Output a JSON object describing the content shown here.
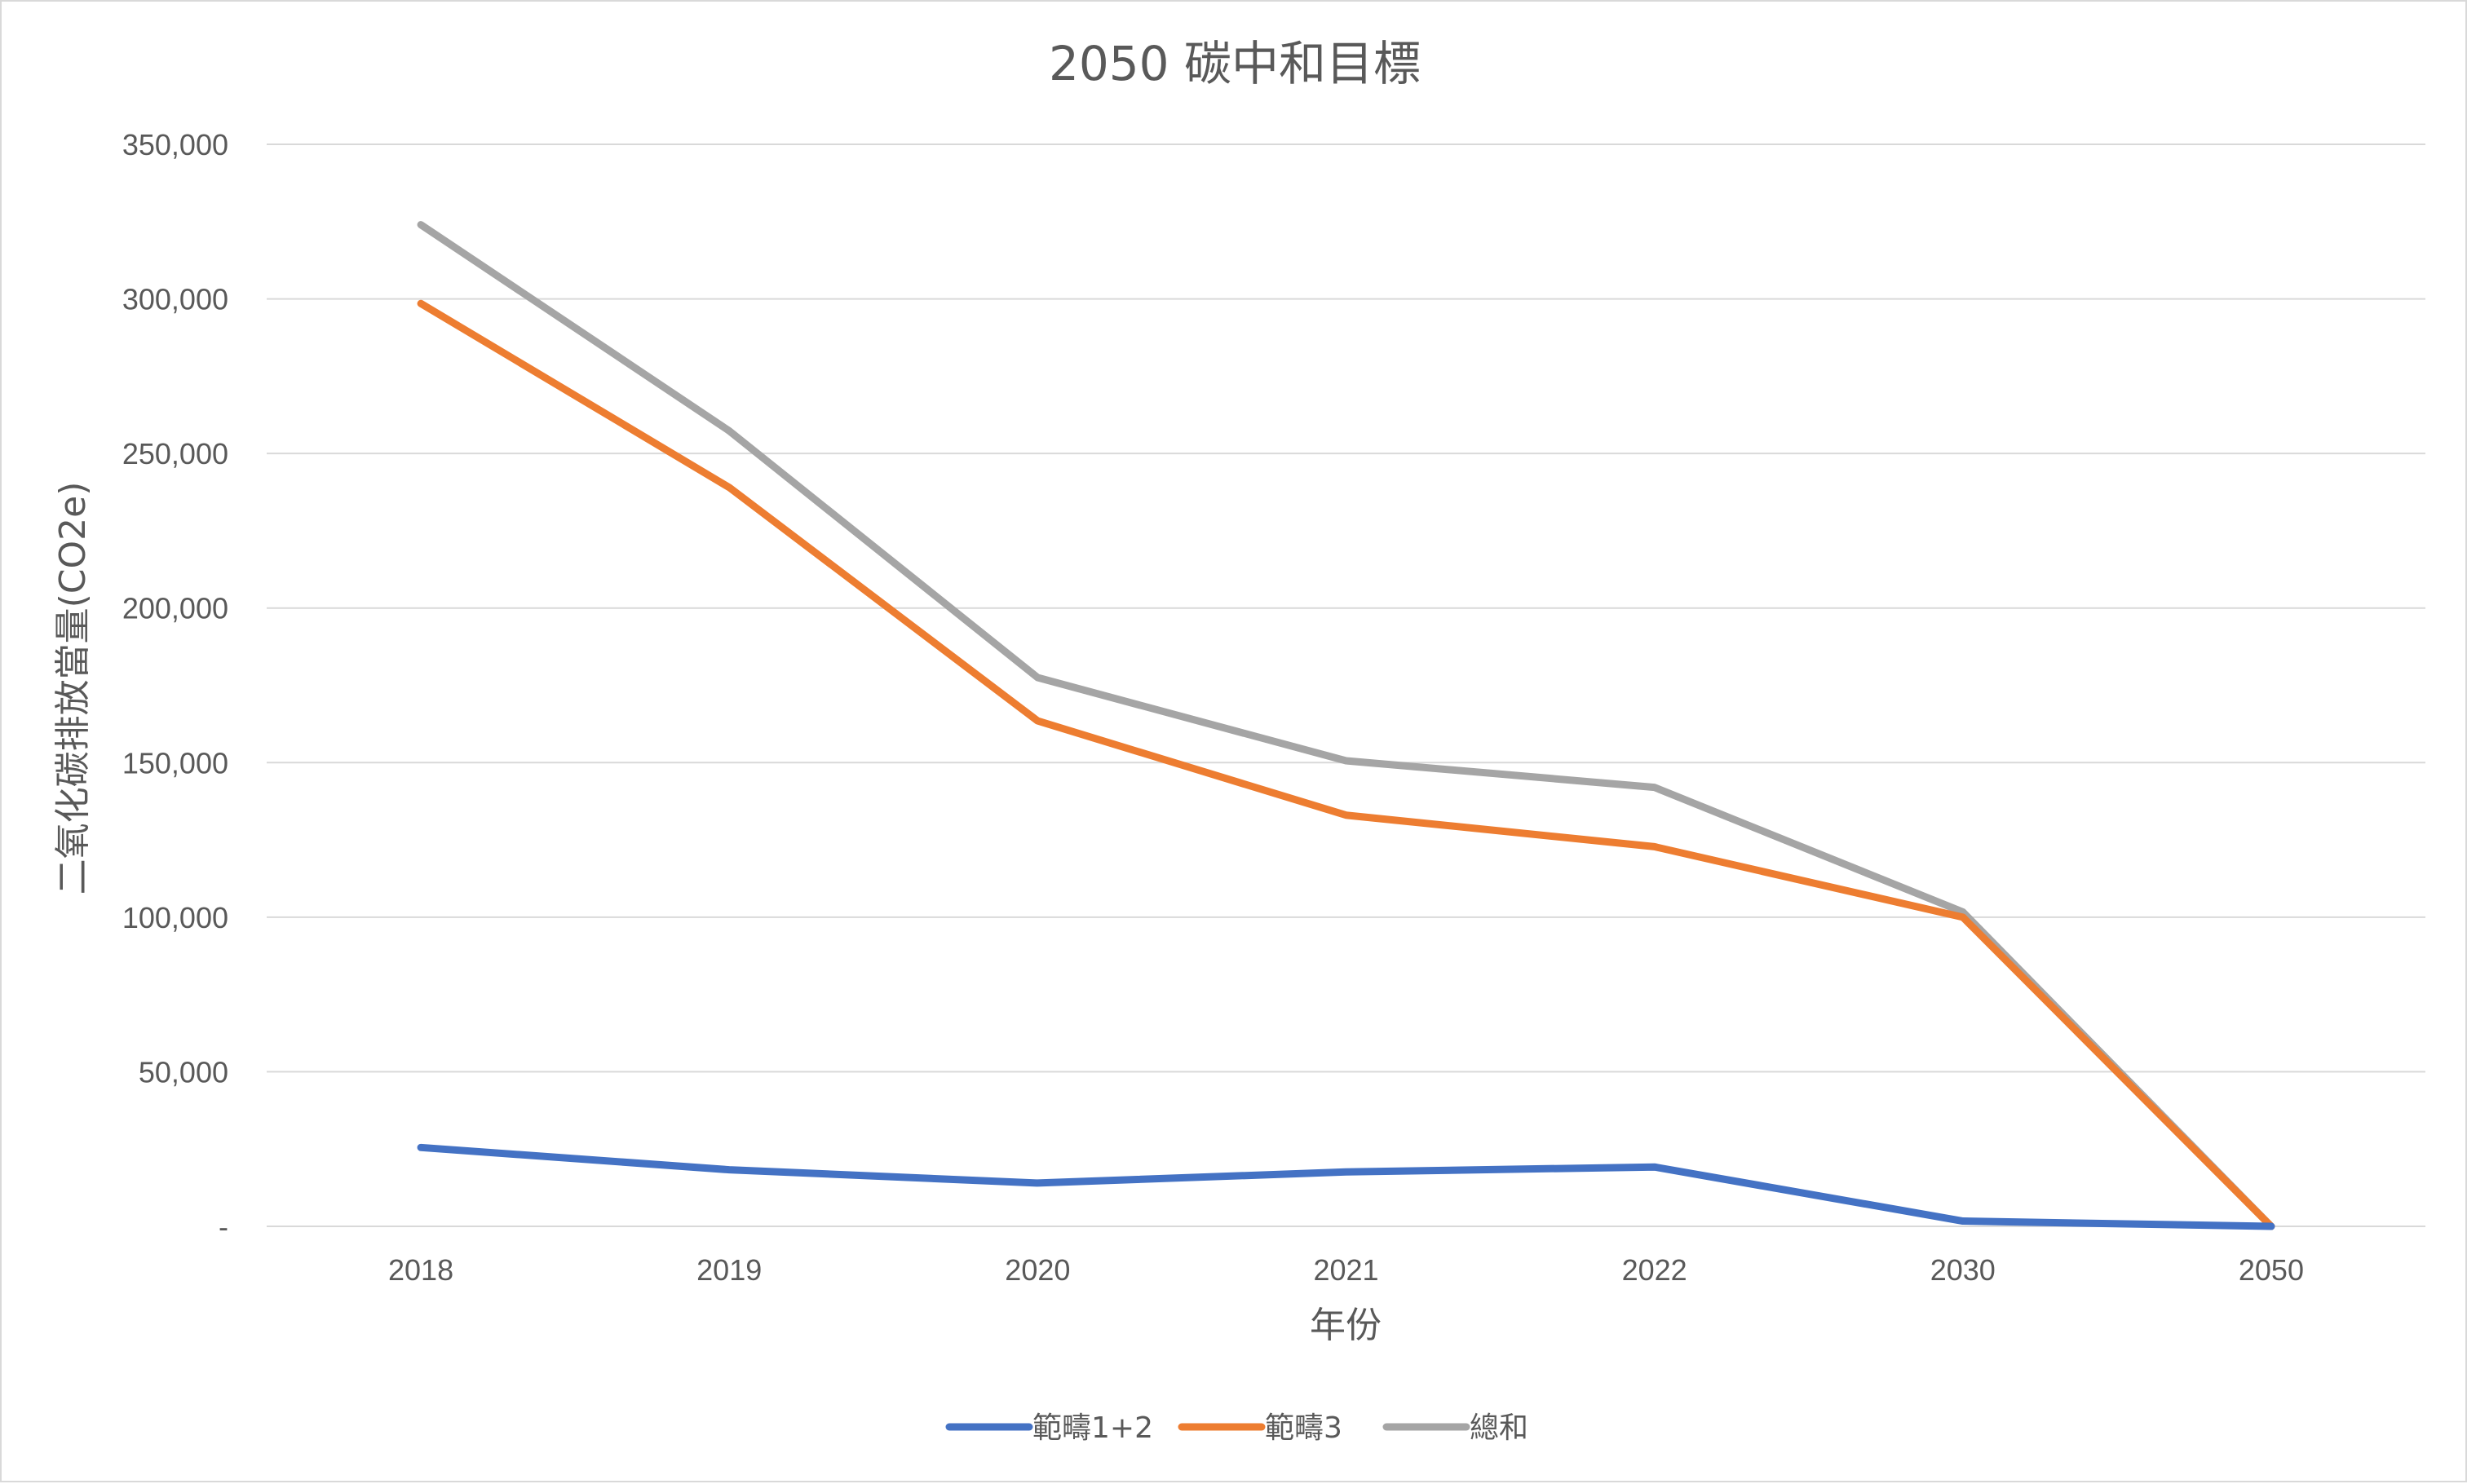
{
  "chart_data": {
    "type": "line",
    "title": "2050 碳中和目標",
    "xlabel": "年份",
    "ylabel": "二氧化碳排放當量(CO2e)",
    "categories": [
      "2018",
      "2019",
      "2020",
      "2021",
      "2022",
      "2030",
      "2050"
    ],
    "ylim": [
      0,
      350000
    ],
    "yticks": [
      0,
      50000,
      100000,
      150000,
      200000,
      250000,
      300000,
      350000
    ],
    "ytick_labels": [
      "-",
      "50,000",
      "100,000",
      "150,000",
      "200,000",
      "250,000",
      "300,000",
      "350,000"
    ],
    "grid": true,
    "legend_position": "bottom",
    "series": [
      {
        "name": "範疇1+2",
        "color": "#4472c4",
        "values": [
          25500,
          18300,
          14000,
          17600,
          19200,
          1700,
          0
        ]
      },
      {
        "name": "範疇3",
        "color": "#ed7d31",
        "values": [
          298500,
          239000,
          163500,
          133000,
          122800,
          100000,
          0
        ]
      },
      {
        "name": "總和",
        "color": "#a5a5a5",
        "values": [
          324000,
          257300,
          177500,
          150600,
          142000,
          101700,
          0
        ]
      }
    ]
  }
}
